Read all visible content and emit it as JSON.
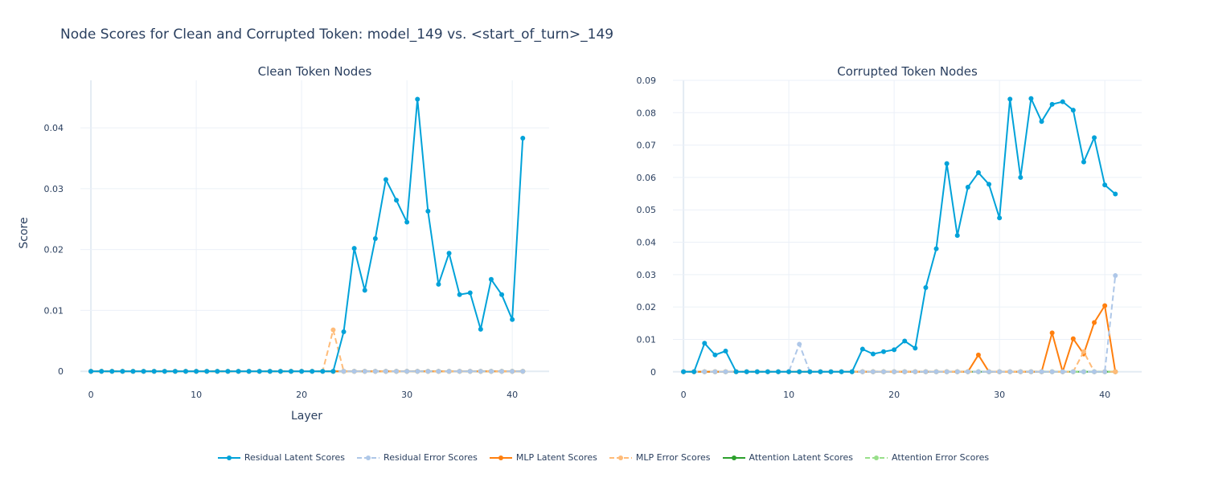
{
  "title": "Node Scores for Clean and Corrupted Token: model_149 vs. <start_of_turn>_149",
  "chart_data": [
    {
      "type": "line",
      "title": "Clean Token Nodes",
      "xlabel": "Layer",
      "ylabel": "Score",
      "xlim": [
        -1,
        43.5
      ],
      "ylim": [
        -0.0005,
        0.0478
      ],
      "xticks": [
        0,
        10,
        20,
        30,
        40
      ],
      "yticks": [
        0,
        0.01,
        0.02,
        0.03,
        0.04
      ],
      "ytick_labels": [
        "0",
        "0.01",
        "0.02",
        "0.03",
        "0.04"
      ],
      "x": [
        0,
        1,
        2,
        3,
        4,
        5,
        6,
        7,
        8,
        9,
        10,
        11,
        12,
        13,
        14,
        15,
        16,
        17,
        18,
        19,
        20,
        21,
        22,
        23,
        24,
        25,
        26,
        27,
        28,
        29,
        30,
        31,
        32,
        33,
        34,
        35,
        36,
        37,
        38,
        39,
        40,
        41
      ],
      "series": [
        {
          "name": "Residual Latent Scores",
          "key": "res_latent",
          "values": [
            0,
            0,
            0,
            0,
            0,
            0,
            0,
            0,
            0,
            0,
            0,
            0,
            0,
            0,
            0,
            0,
            0,
            0,
            0,
            0,
            0,
            0,
            0,
            0,
            0.0065,
            0.0202,
            0.0133,
            0.0218,
            0.0315,
            0.0281,
            0.0245,
            0.0447,
            0.0263,
            0.0143,
            0.0194,
            0.0126,
            0.0129,
            0.0069,
            0.0151,
            0.0126,
            0.0085,
            0.0383
          ]
        },
        {
          "name": " Residual Error Scores",
          "key": "res_error",
          "values": [
            0,
            0,
            0,
            0,
            0,
            0,
            0,
            0,
            0,
            0,
            0,
            0,
            0,
            0,
            0,
            0,
            0,
            0,
            0,
            0,
            0,
            0,
            0,
            0,
            0,
            0,
            0,
            0,
            0,
            0,
            0,
            0,
            0,
            0,
            0,
            0,
            0,
            0,
            0,
            0,
            0,
            0
          ]
        },
        {
          "name": "MLP Latent Scores",
          "key": "mlp_latent",
          "values": [
            0,
            0,
            0,
            0,
            0,
            0,
            0,
            0,
            0,
            0,
            0,
            0,
            0,
            0,
            0,
            0,
            0,
            0,
            0,
            0,
            0,
            0,
            0,
            0,
            0,
            0,
            0,
            0,
            0,
            0,
            0,
            0,
            0,
            0,
            0,
            0,
            0,
            0,
            0,
            0,
            0,
            0
          ]
        },
        {
          "name": "MLP Error Scores",
          "key": "mlp_error",
          "values": [
            0,
            0,
            0,
            0,
            0,
            0,
            0,
            0,
            0,
            0,
            0,
            0,
            0,
            0,
            0,
            0,
            0,
            0,
            0,
            0,
            0,
            0,
            0,
            0.0068,
            0,
            0,
            0,
            0,
            0,
            0,
            0,
            0,
            0,
            0,
            0,
            0,
            0,
            0,
            0,
            0,
            0,
            0
          ]
        },
        {
          "name": "Attention Latent Scores",
          "key": "attn_latent",
          "values": [
            0,
            0,
            0,
            0,
            0,
            0,
            0,
            0,
            0,
            0,
            0,
            0,
            0,
            0,
            0,
            0,
            0,
            0,
            0,
            0,
            0,
            0,
            0,
            0,
            0,
            0,
            0,
            0,
            0,
            0,
            0,
            0,
            0,
            0,
            0,
            0,
            0,
            0,
            0,
            0,
            0,
            0
          ]
        },
        {
          "name": "Attention Error Scores",
          "key": "attn_error",
          "values": [
            0,
            0,
            0,
            0,
            0,
            0,
            0,
            0,
            0,
            0,
            0,
            0,
            0,
            0,
            0,
            0,
            0,
            0,
            0,
            0,
            0,
            0,
            0,
            0,
            0,
            0,
            0,
            0,
            0,
            0,
            0,
            0,
            0,
            0,
            0,
            0,
            0,
            0,
            0,
            0,
            0,
            0
          ]
        }
      ]
    },
    {
      "type": "line",
      "title": "Corrupted Token Nodes",
      "xlabel": "",
      "ylabel": "",
      "xlim": [
        -1,
        43.5
      ],
      "ylim": [
        -0.0008,
        0.09
      ],
      "xticks": [
        0,
        10,
        20,
        30,
        40
      ],
      "yticks": [
        0,
        0.01,
        0.02,
        0.03,
        0.04,
        0.05,
        0.06,
        0.07,
        0.08,
        0.09
      ],
      "ytick_labels": [
        "0",
        "0.01",
        "0.02",
        "0.03",
        "0.04",
        "0.05",
        "0.06",
        "0.07",
        "0.08",
        "0.09"
      ],
      "x": [
        0,
        1,
        2,
        3,
        4,
        5,
        6,
        7,
        8,
        9,
        10,
        11,
        12,
        13,
        14,
        15,
        16,
        17,
        18,
        19,
        20,
        21,
        22,
        23,
        24,
        25,
        26,
        27,
        28,
        29,
        30,
        31,
        32,
        33,
        34,
        35,
        36,
        37,
        38,
        39,
        40,
        41
      ],
      "series": [
        {
          "name": "Residual Latent Scores",
          "key": "res_latent",
          "values": [
            0,
            0,
            0.0088,
            0.0052,
            0.0064,
            0,
            0,
            0,
            0,
            0,
            0,
            0,
            0,
            0,
            0,
            0,
            0,
            0.007,
            0.0055,
            0.0062,
            0.0068,
            0.0095,
            0.0073,
            0.026,
            0.038,
            0.0643,
            0.0421,
            0.057,
            0.0615,
            0.0579,
            0.0475,
            0.0842,
            0.06,
            0.0844,
            0.0773,
            0.0826,
            0.0834,
            0.0808,
            0.0648,
            0.0723,
            0.0577,
            0.0549
          ]
        },
        {
          "name": " Residual Error Scores",
          "key": "res_error",
          "values": [
            0,
            0,
            0,
            0,
            0,
            0,
            0,
            0,
            0,
            0,
            0,
            0.0085,
            0,
            0,
            0,
            0,
            0,
            0,
            0,
            0,
            0,
            0,
            0,
            0,
            0,
            0,
            0,
            0,
            0,
            0,
            0,
            0,
            0,
            0,
            0,
            0,
            0,
            0,
            0,
            0,
            0,
            0.0297
          ]
        },
        {
          "name": "MLP Latent Scores",
          "key": "mlp_latent",
          "values": [
            0,
            0,
            0,
            0,
            0,
            0,
            0,
            0,
            0,
            0,
            0,
            0,
            0,
            0,
            0,
            0,
            0,
            0,
            0,
            0,
            0,
            0,
            0,
            0,
            0,
            0,
            0,
            0,
            0.0052,
            0,
            0,
            0,
            0,
            0,
            0,
            0.012,
            0,
            0.0102,
            0.0055,
            0.0152,
            0.0204,
            0
          ]
        },
        {
          "name": "MLP Error Scores",
          "key": "mlp_error",
          "values": [
            0,
            0,
            0,
            0,
            0,
            0,
            0,
            0,
            0,
            0,
            0,
            0,
            0,
            0,
            0,
            0,
            0,
            0,
            0,
            0,
            0,
            0,
            0,
            0,
            0,
            0,
            0,
            0,
            0,
            0,
            0,
            0,
            0,
            0,
            0,
            0,
            0,
            0,
            0.0062,
            0,
            0,
            0
          ]
        },
        {
          "name": "Attention Latent Scores",
          "key": "attn_latent",
          "values": [
            0,
            0,
            0,
            0,
            0,
            0,
            0,
            0,
            0,
            0,
            0,
            0,
            0,
            0,
            0,
            0,
            0,
            0,
            0,
            0,
            0,
            0,
            0,
            0,
            0,
            0,
            0,
            0,
            0,
            0,
            0,
            0,
            0,
            0,
            0,
            0,
            0,
            0,
            0,
            0,
            0,
            0
          ]
        },
        {
          "name": "Attention Error Scores",
          "key": "attn_error",
          "values": [
            0,
            0,
            0,
            0,
            0,
            0,
            0,
            0,
            0,
            0,
            0,
            0,
            0,
            0,
            0,
            0,
            0,
            0,
            0,
            0,
            0,
            0,
            0,
            0,
            0,
            0,
            0,
            0,
            0,
            0,
            0,
            0,
            0,
            0,
            0,
            0,
            0,
            0,
            0,
            0,
            0,
            0
          ]
        }
      ]
    }
  ],
  "series_styles": {
    "res_latent": {
      "color": "#00a2d9",
      "dash": false
    },
    "res_error": {
      "color": "#aec7e8",
      "dash": true
    },
    "mlp_latent": {
      "color": "#ff7f0e",
      "dash": false
    },
    "mlp_error": {
      "color": "#ffbb78",
      "dash": true
    },
    "attn_latent": {
      "color": "#2ca02c",
      "dash": false
    },
    "attn_error": {
      "color": "#98df8a",
      "dash": true
    }
  },
  "legend": [
    {
      "key": "res_latent",
      "label": "Residual Latent Scores"
    },
    {
      "key": "res_error",
      "label": " Residual Error Scores"
    },
    {
      "key": "mlp_latent",
      "label": "MLP Latent Scores"
    },
    {
      "key": "mlp_error",
      "label": "MLP Error Scores"
    },
    {
      "key": "attn_latent",
      "label": "Attention Latent Scores"
    },
    {
      "key": "attn_error",
      "label": "Attention Error Scores"
    }
  ]
}
